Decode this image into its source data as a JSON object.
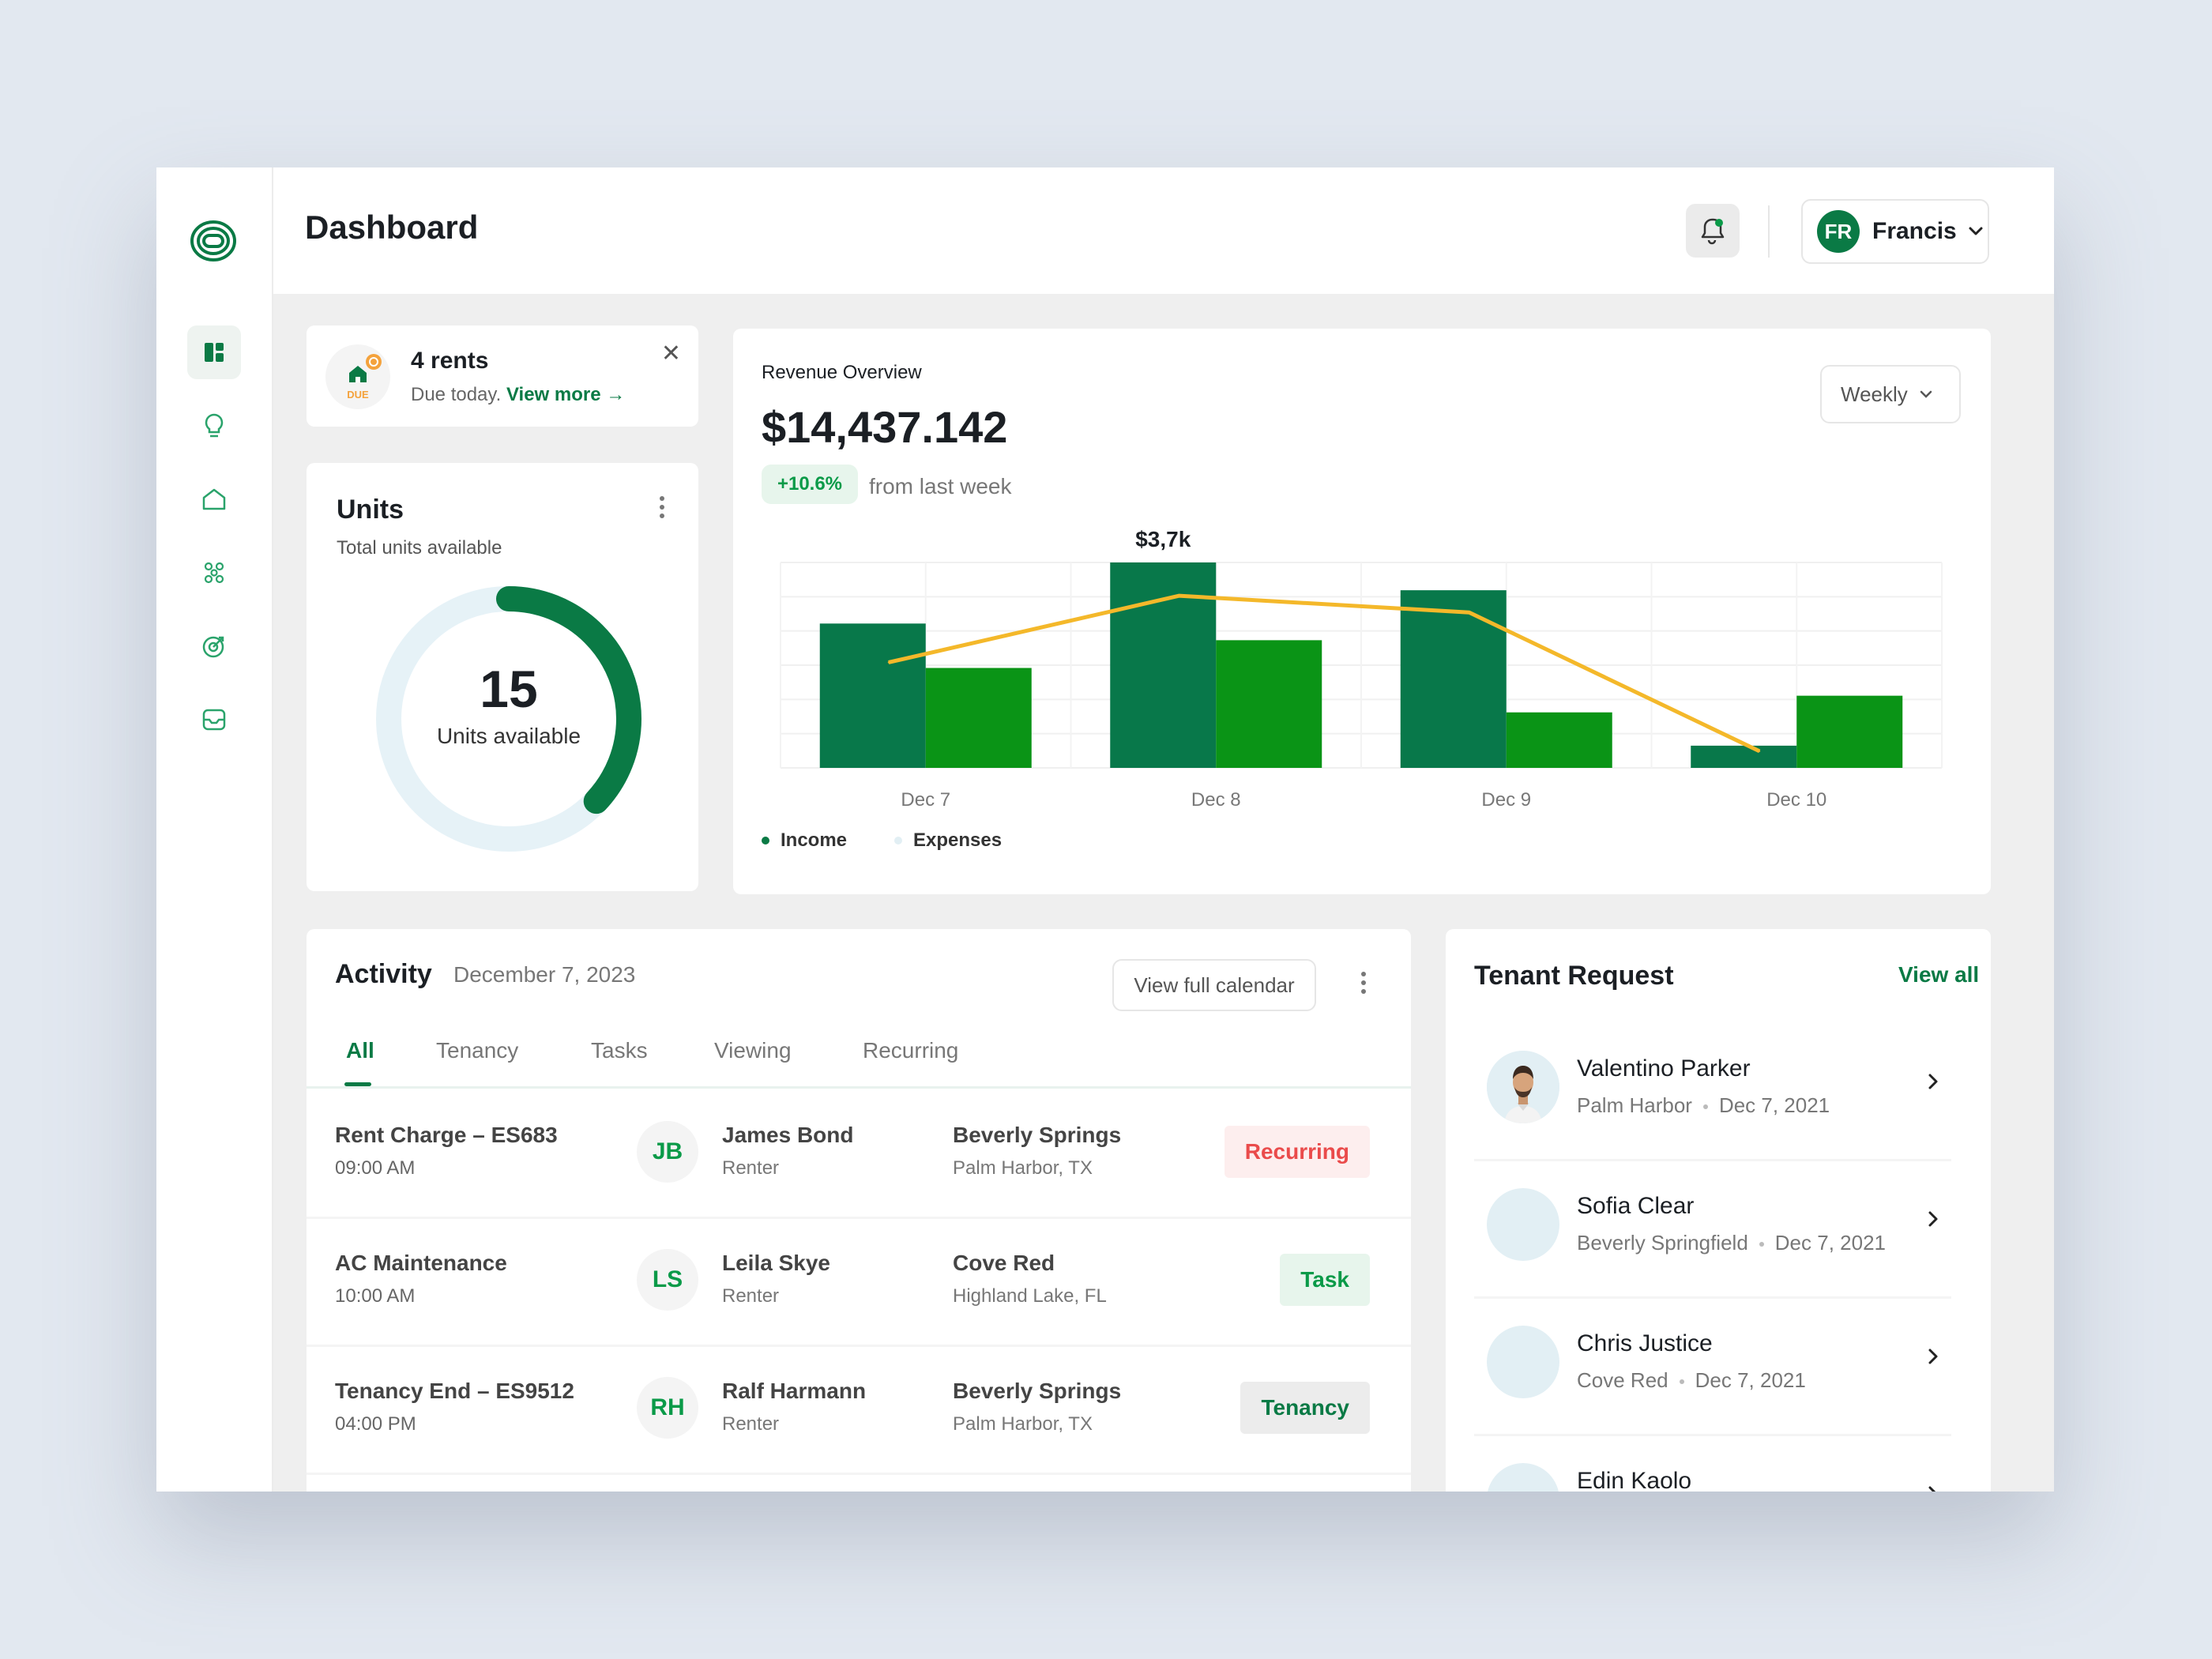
{
  "header": {
    "title": "Dashboard",
    "user_initials": "FR",
    "user_name": "Francis"
  },
  "sidebar": {
    "items": [
      {
        "icon": "dashboard-icon",
        "active": true
      },
      {
        "icon": "lightbulb-icon",
        "active": false
      },
      {
        "icon": "home-icon",
        "active": false
      },
      {
        "icon": "network-icon",
        "active": false
      },
      {
        "icon": "target-icon",
        "active": false
      },
      {
        "icon": "inbox-icon",
        "active": false
      }
    ]
  },
  "rents_notice": {
    "title": "4 rents",
    "subtitle": "Due today.",
    "link": "View more →",
    "badge": "DUE"
  },
  "units": {
    "title": "Units",
    "subtitle": "Total units available",
    "value": "15",
    "label": "Units available",
    "fill_fraction": 0.37
  },
  "revenue": {
    "title": "Revenue Overview",
    "amount": "$14,437.142",
    "change": "+10.6%",
    "compare": "from last week",
    "period": "Weekly",
    "legend_income": "Income",
    "legend_expenses": "Expenses"
  },
  "chart_data": {
    "type": "bar",
    "categories": [
      "Dec 7",
      "Dec 8",
      "Dec 9",
      "Dec 10"
    ],
    "series": [
      {
        "name": "Income",
        "values": [
          2.6,
          3.7,
          3.2,
          0.4
        ],
        "color": "#08784a"
      },
      {
        "name": "Expenses",
        "values": [
          1.8,
          2.3,
          1.0,
          1.3
        ],
        "color": "#0a9416"
      }
    ],
    "line": {
      "values": [
        1.9,
        3.1,
        2.8,
        0.3
      ],
      "color": "#f4b82a"
    },
    "annotation": {
      "category": "Dec 8",
      "text": "$3,7k"
    },
    "ylim": [
      0,
      3.7
    ],
    "grid": true
  },
  "activity": {
    "title": "Activity",
    "date": "December 7, 2023",
    "calendar_button": "View full calendar",
    "tabs": [
      "All",
      "Tenancy",
      "Tasks",
      "Viewing",
      "Recurring"
    ],
    "rows": [
      {
        "title": "Rent Charge – ES683",
        "time": "09:00 AM",
        "initials": "JB",
        "name": "James Bond",
        "role": "Renter",
        "property": "Beverly Springs",
        "location": "Palm Harbor, TX",
        "tag": "Recurring"
      },
      {
        "title": "AC Maintenance",
        "time": "10:00 AM",
        "initials": "LS",
        "name": "Leila Skye",
        "role": "Renter",
        "property": "Cove Red",
        "location": "Highland Lake, FL",
        "tag": "Task"
      },
      {
        "title": "Tenancy End – ES9512",
        "time": "04:00 PM",
        "initials": "RH",
        "name": "Ralf Harmann",
        "role": "Renter",
        "property": "Beverly Springs",
        "location": "Palm Harbor, TX",
        "tag": "Tenancy"
      }
    ]
  },
  "tenant_request": {
    "title": "Tenant Request",
    "view_all": "View all",
    "items": [
      {
        "name": "Valentino Parker",
        "place": "Palm Harbor",
        "date": "Dec 7, 2021"
      },
      {
        "name": "Sofia Clear",
        "place": "Beverly Springfield",
        "date": "Dec 7, 2021"
      },
      {
        "name": "Chris Justice",
        "place": "Cove Red",
        "date": "Dec 7, 2021"
      },
      {
        "name": "Edin Kaolo"
      }
    ]
  },
  "colors": {
    "brand": "#0a7a45",
    "income": "#08784a",
    "expenses": "#0a9416",
    "trend": "#f4b82a"
  }
}
